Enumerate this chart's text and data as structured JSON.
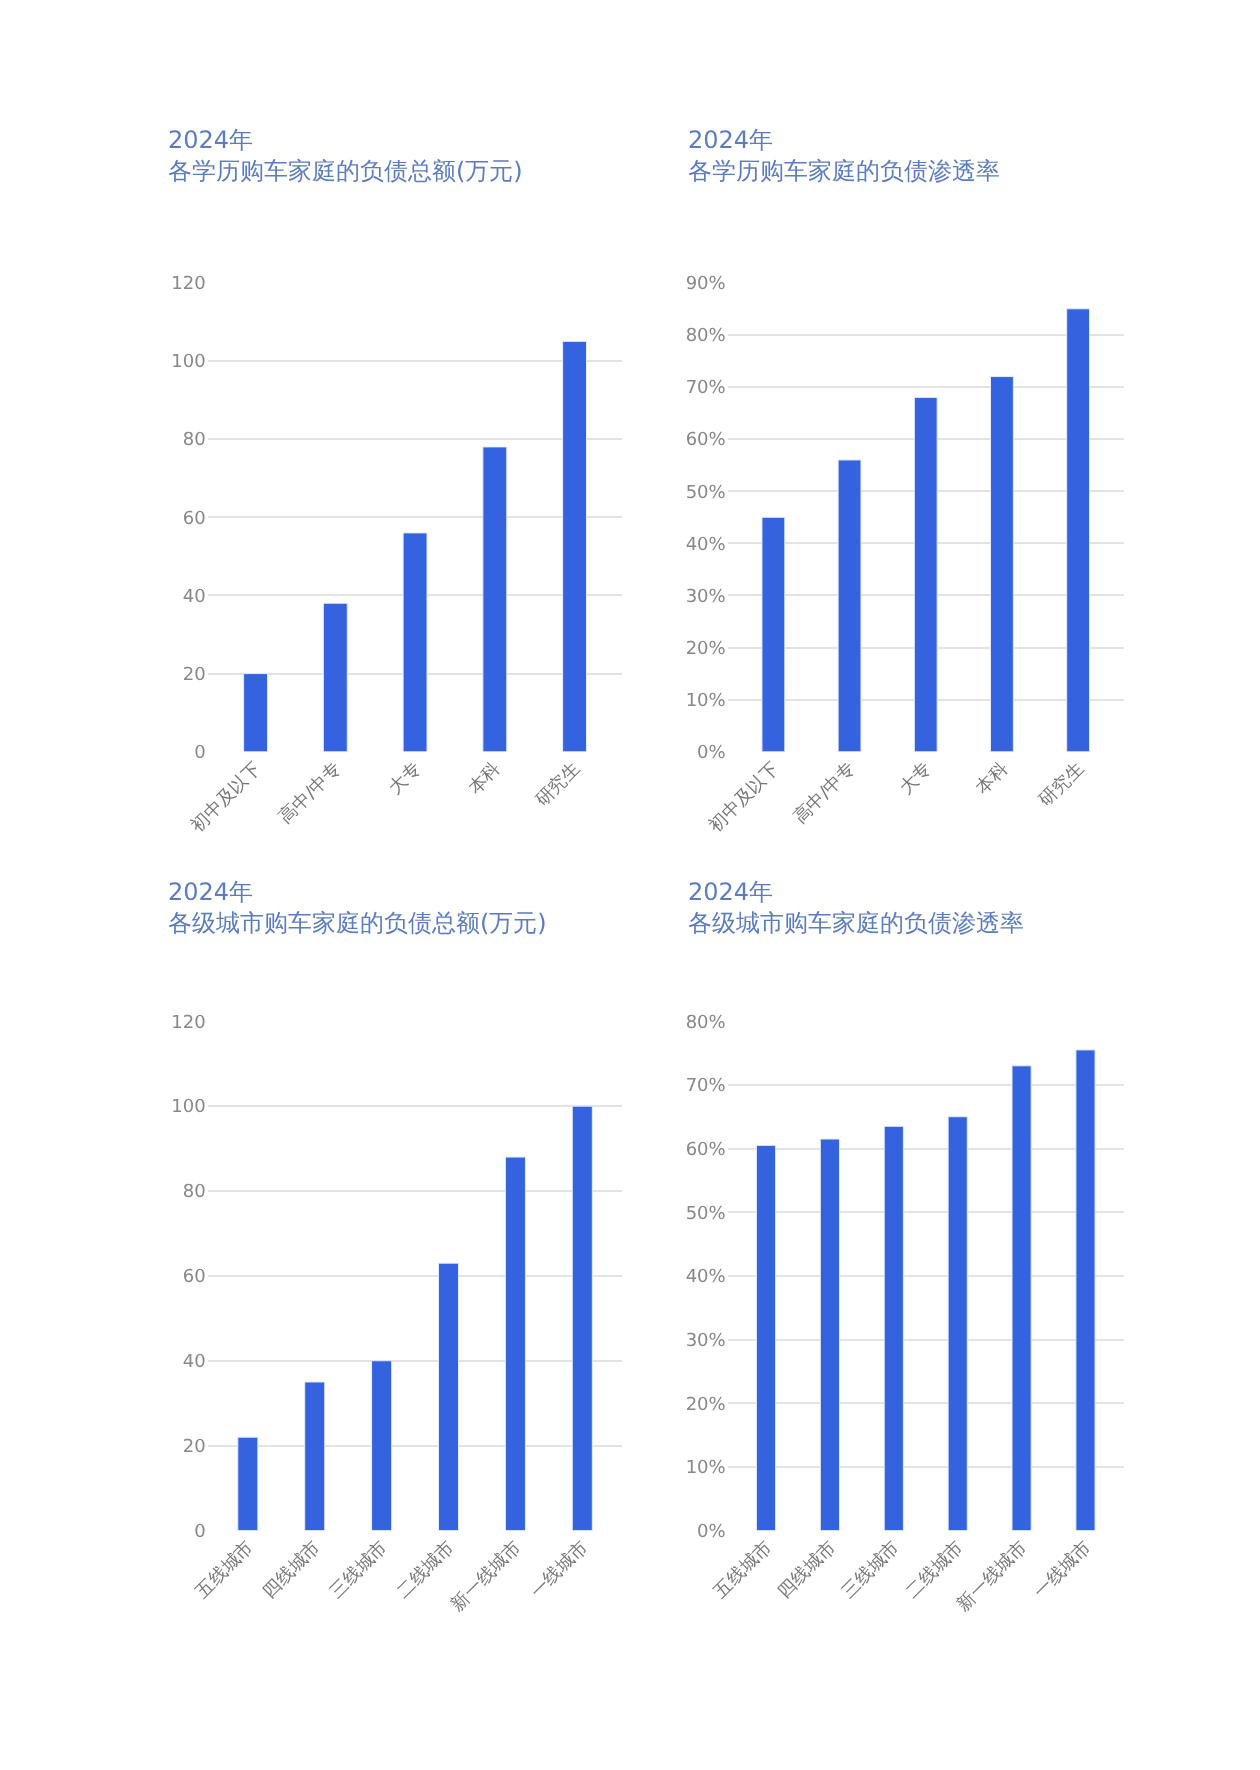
{
  "chart_data": [
    {
      "type": "bar",
      "title": "2024年",
      "subtitle": "各学历购车家庭的负债总额(万元)",
      "categories": [
        "初中及以下",
        "高中/中专",
        "大专",
        "本科",
        "研究生"
      ],
      "values": [
        20,
        38,
        56,
        78,
        105
      ],
      "color": "#3563e0",
      "ylim": [
        0,
        120
      ],
      "yticks": [
        0,
        20,
        40,
        60,
        80,
        100,
        120
      ],
      "grid": "y"
    },
    {
      "type": "bar",
      "title": "2024年",
      "subtitle": "各学历购车家庭的负债渗透率",
      "categories": [
        "初中及以下",
        "高中/中专",
        "大专",
        "本科",
        "研究生"
      ],
      "values": [
        45,
        56,
        68,
        72,
        85
      ],
      "color": "#3563e0",
      "ylim": [
        0,
        90
      ],
      "yticks": [
        {
          "value": 0,
          "label": "0%"
        },
        {
          "value": 10,
          "label": "10%"
        },
        {
          "value": 20,
          "label": "20%"
        },
        {
          "value": 30,
          "label": "30%"
        },
        {
          "value": 40,
          "label": "40%"
        },
        {
          "value": 50,
          "label": "50%"
        },
        {
          "value": 60,
          "label": "60%"
        },
        {
          "value": 70,
          "label": "70%"
        },
        {
          "value": 80,
          "label": "80%"
        },
        {
          "value": 90,
          "label": "90%"
        }
      ],
      "grid": "y"
    },
    {
      "type": "bar",
      "title": "2024年",
      "subtitle": "各级城市购车家庭的负债总额(万元)",
      "categories": [
        "五线城市",
        "四线城市",
        "三线城市",
        "二线城市",
        "新一线城市",
        "一线城市"
      ],
      "values": [
        22,
        35,
        40,
        63,
        88,
        100
      ],
      "color": "#3563e0",
      "ylim": [
        0,
        120
      ],
      "yticks": [
        0,
        20,
        40,
        60,
        80,
        100,
        120
      ],
      "grid": "y"
    },
    {
      "type": "bar",
      "title": "2024年",
      "subtitle": "各级城市购车家庭的负债渗透率",
      "categories": [
        "五线城市",
        "四线城市",
        "三线城市",
        "二线城市",
        "新一线城市",
        "一线城市"
      ],
      "values": [
        60.5,
        61.5,
        63.5,
        65,
        73,
        75.5
      ],
      "color": "#3563e0",
      "ylim": [
        0,
        80
      ],
      "yticks": [
        {
          "value": 0,
          "label": "0%"
        },
        {
          "value": 10,
          "label": "10%"
        },
        {
          "value": 20,
          "label": "20%"
        },
        {
          "value": 30,
          "label": "30%"
        },
        {
          "value": 40,
          "label": "40%"
        },
        {
          "value": 50,
          "label": "50%"
        },
        {
          "value": 60,
          "label": "60%"
        },
        {
          "value": 70,
          "label": "70%"
        },
        {
          "value": 80,
          "label": "80%"
        }
      ],
      "grid": "y"
    }
  ]
}
